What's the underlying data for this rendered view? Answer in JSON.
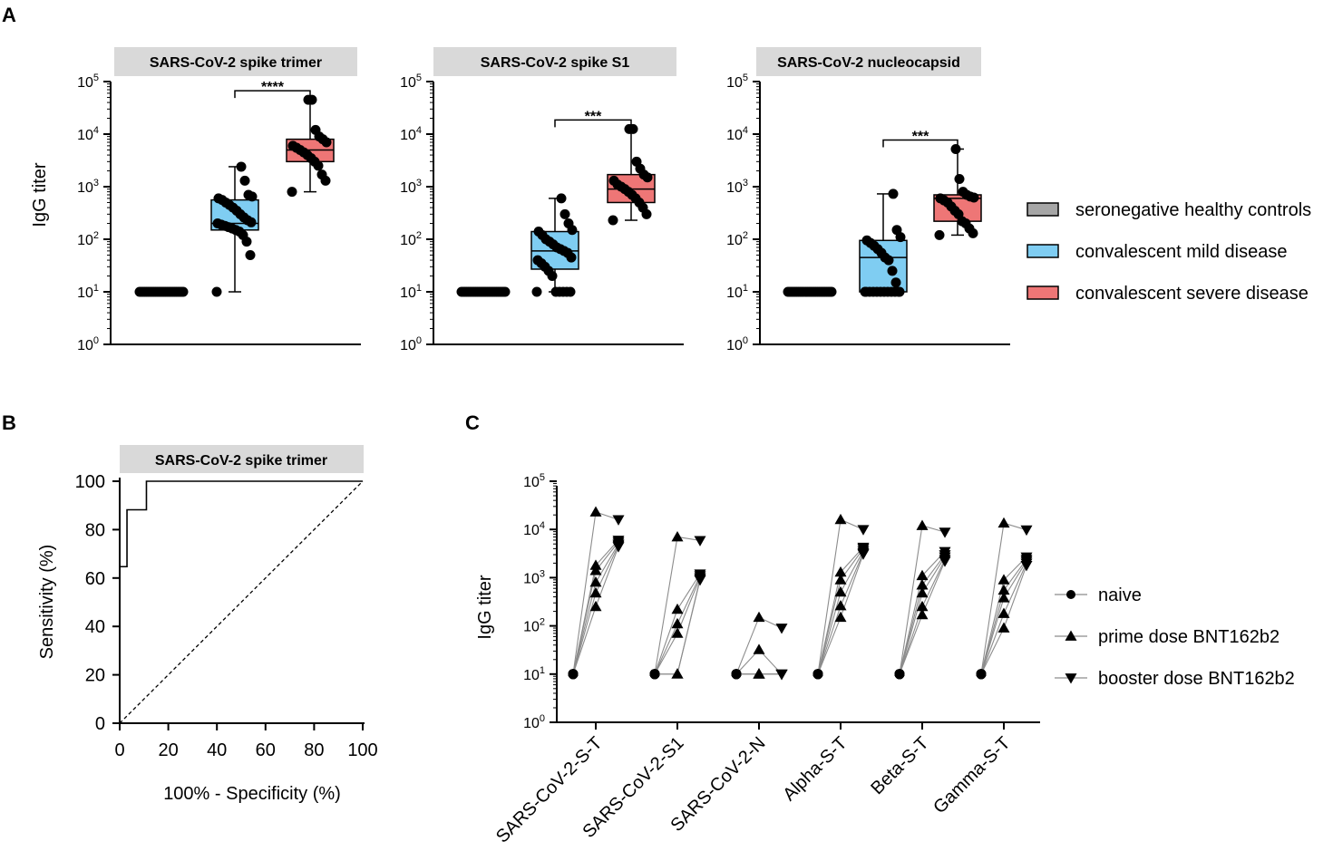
{
  "panel_labels": {
    "a": "A",
    "b": "B",
    "c": "C"
  },
  "colors": {
    "seronegative": "#a6a6a6",
    "mild": "#7fcdf2",
    "severe": "#ee7676",
    "header_bg": "#d9d9d9",
    "ink": "#000000",
    "connector": "#8c8c8c"
  },
  "chart_data": [
    {
      "id": "A",
      "type": "box",
      "y_scale": "log10",
      "ylim": [
        1,
        100000
      ],
      "ylabel": "IgG titer",
      "y_ticks": [
        {
          "base": "10",
          "exp": "0"
        },
        {
          "base": "10",
          "exp": "1"
        },
        {
          "base": "10",
          "exp": "2"
        },
        {
          "base": "10",
          "exp": "3"
        },
        {
          "base": "10",
          "exp": "4"
        },
        {
          "base": "10",
          "exp": "5"
        }
      ],
      "legend": [
        {
          "label": "seronegative healthy controls",
          "color": "seronegative"
        },
        {
          "label": "convalescent mild disease",
          "color": "mild"
        },
        {
          "label": "convalescent severe disease",
          "color": "severe"
        }
      ],
      "subplots": [
        {
          "title": "SARS-CoV-2 spike trimer",
          "significance": "****",
          "groups": [
            {
              "name": "seronegative healthy controls",
              "color": "seronegative",
              "min": 10,
              "q1": 10,
              "median": 10,
              "q3": 10,
              "max": 10,
              "points": [
                10,
                10,
                10,
                10,
                10,
                10,
                10,
                10,
                10,
                10,
                10,
                10,
                10,
                10,
                10,
                10,
                10,
                10,
                10,
                10,
                10,
                10,
                10,
                10,
                10,
                10
              ]
            },
            {
              "name": "convalescent mild disease",
              "color": "mild",
              "min": 10,
              "q1": 150,
              "median": 200,
              "q3": 560,
              "max": 2400,
              "points": [
                10,
                50,
                90,
                120,
                140,
                150,
                160,
                170,
                180,
                190,
                200,
                210,
                230,
                260,
                300,
                350,
                400,
                450,
                500,
                560,
                600,
                650,
                700,
                1300,
                2400
              ]
            },
            {
              "name": "convalescent severe disease",
              "color": "severe",
              "min": 800,
              "q1": 3000,
              "median": 5000,
              "q3": 8000,
              "max": 45000,
              "points": [
                800,
                1300,
                1700,
                2500,
                3000,
                3500,
                4000,
                4500,
                5000,
                5500,
                6000,
                7000,
                8000,
                9000,
                12000,
                45000,
                45000
              ]
            }
          ]
        },
        {
          "title": "SARS-CoV-2 spike S1",
          "significance": "***",
          "groups": [
            {
              "name": "seronegative healthy controls",
              "color": "seronegative",
              "min": 10,
              "q1": 10,
              "median": 10,
              "q3": 10,
              "max": 10,
              "points": [
                10,
                10,
                10,
                10,
                10,
                10,
                10,
                10,
                10,
                10,
                10,
                10,
                10,
                10,
                10,
                10,
                10,
                10,
                10,
                10,
                10,
                10,
                10,
                10,
                10,
                10
              ]
            },
            {
              "name": "convalescent mild disease",
              "color": "mild",
              "min": 10,
              "q1": 27,
              "median": 60,
              "q3": 140,
              "max": 600,
              "points": [
                10,
                10,
                10,
                10,
                10,
                10,
                20,
                25,
                30,
                35,
                40,
                45,
                55,
                60,
                65,
                70,
                80,
                90,
                100,
                120,
                140,
                150,
                200,
                300,
                600
              ]
            },
            {
              "name": "convalescent severe disease",
              "color": "severe",
              "min": 230,
              "q1": 500,
              "median": 900,
              "q3": 1700,
              "max": 12500,
              "points": [
                230,
                300,
                400,
                500,
                600,
                700,
                800,
                900,
                1000,
                1100,
                1300,
                1500,
                1700,
                2200,
                3000,
                12500,
                12500
              ]
            }
          ]
        },
        {
          "title": "SARS-CoV-2 nucleocapsid",
          "significance": "***",
          "groups": [
            {
              "name": "seronegative healthy controls",
              "color": "seronegative",
              "min": 10,
              "q1": 10,
              "median": 10,
              "q3": 10,
              "max": 10,
              "points": [
                10,
                10,
                10,
                10,
                10,
                10,
                10,
                10,
                10,
                10,
                10,
                10,
                10,
                10,
                10,
                10,
                10,
                10,
                10,
                10,
                10,
                10,
                10,
                10,
                10,
                10
              ]
            },
            {
              "name": "convalescent mild disease",
              "color": "mild",
              "min": 10,
              "q1": 10,
              "median": 45,
              "q3": 95,
              "max": 730,
              "points": [
                10,
                10,
                10,
                10,
                10,
                10,
                10,
                10,
                10,
                10,
                10,
                10,
                15,
                25,
                40,
                45,
                55,
                65,
                75,
                85,
                95,
                110,
                150,
                730
              ]
            },
            {
              "name": "convalescent severe disease",
              "color": "severe",
              "min": 120,
              "q1": 220,
              "median": 600,
              "q3": 700,
              "max": 5200,
              "points": [
                120,
                130,
                160,
                200,
                220,
                300,
                350,
                420,
                500,
                550,
                600,
                620,
                650,
                700,
                800,
                1400,
                5200
              ]
            }
          ]
        }
      ]
    },
    {
      "id": "B",
      "type": "line",
      "title": "SARS-CoV-2 spike trimer",
      "xlabel": "100% - Specificity (%)",
      "ylabel": "Sensitivity (%)",
      "xlim": [
        0,
        100
      ],
      "ylim": [
        0,
        100
      ],
      "x_ticks": [
        "0",
        "20",
        "40",
        "60",
        "80",
        "100"
      ],
      "y_ticks": [
        "0",
        "20",
        "40",
        "60",
        "80",
        "100"
      ],
      "series": [
        {
          "name": "ROC",
          "style": "solid",
          "x": [
            0,
            0,
            3,
            3,
            11,
            11,
            100
          ],
          "y": [
            0,
            64.7,
            64.7,
            88.2,
            88.2,
            100,
            100
          ]
        },
        {
          "name": "reference",
          "style": "dashed",
          "x": [
            0,
            100
          ],
          "y": [
            0,
            100
          ]
        }
      ]
    },
    {
      "id": "C",
      "type": "scatter",
      "y_scale": "log10",
      "ylim": [
        1,
        100000
      ],
      "ylabel": "IgG titer",
      "y_ticks": [
        {
          "base": "10",
          "exp": "0"
        },
        {
          "base": "10",
          "exp": "1"
        },
        {
          "base": "10",
          "exp": "2"
        },
        {
          "base": "10",
          "exp": "3"
        },
        {
          "base": "10",
          "exp": "4"
        },
        {
          "base": "10",
          "exp": "5"
        }
      ],
      "categories": [
        "SARS-CoV-2-S-T",
        "SARS-CoV-2-S1",
        "SARS-CoV-2-N",
        "Alpha-S-T",
        "Beta-S-T",
        "Gamma-S-T"
      ],
      "legend": [
        {
          "label": "naive",
          "marker": "circle"
        },
        {
          "label": "prime dose BNT162b2",
          "marker": "triangle-up"
        },
        {
          "label": "booster dose BNT162b2",
          "marker": "triangle-down"
        }
      ],
      "subjects": [
        {
          "values": [
            [
              10,
              23000,
              16000
            ],
            [
              10,
              7000,
              5900
            ],
            [
              10,
              150,
              90
            ],
            [
              10,
              16000,
              10000
            ],
            [
              10,
              12000,
              8800
            ],
            [
              10,
              13500,
              9800
            ]
          ]
        },
        {
          "values": [
            [
              10,
              1800,
              6000
            ],
            [
              10,
              220,
              1200
            ],
            [
              10,
              32,
              10
            ],
            [
              10,
              1300,
              4300
            ],
            [
              10,
              1100,
              3500
            ],
            [
              10,
              900,
              2700
            ]
          ]
        },
        {
          "values": [
            [
              10,
              1400,
              5500
            ],
            [
              10,
              110,
              1100
            ],
            [
              10,
              10,
              10
            ],
            [
              10,
              900,
              4000
            ],
            [
              10,
              700,
              3000
            ],
            [
              10,
              550,
              2400
            ]
          ]
        },
        {
          "values": [
            [
              10,
              800,
              5000
            ],
            [
              10,
              70,
              1000
            ],
            [
              10,
              10,
              10
            ],
            [
              10,
              500,
              3600
            ],
            [
              10,
              480,
              2700
            ],
            [
              10,
              380,
              2200
            ]
          ]
        },
        {
          "values": [
            [
              10,
              480,
              4700
            ],
            [
              10,
              10,
              950
            ],
            [
              10,
              10,
              10
            ],
            [
              10,
              260,
              3300
            ],
            [
              10,
              250,
              2400
            ],
            [
              10,
              180,
              2000
            ]
          ]
        },
        {
          "values": [
            [
              10,
              250,
              4400
            ],
            [
              10,
              10,
              900
            ],
            [
              10,
              10,
              10
            ],
            [
              10,
              150,
              3100
            ],
            [
              10,
              170,
              2200
            ],
            [
              10,
              90,
              1800
            ]
          ]
        }
      ]
    }
  ]
}
